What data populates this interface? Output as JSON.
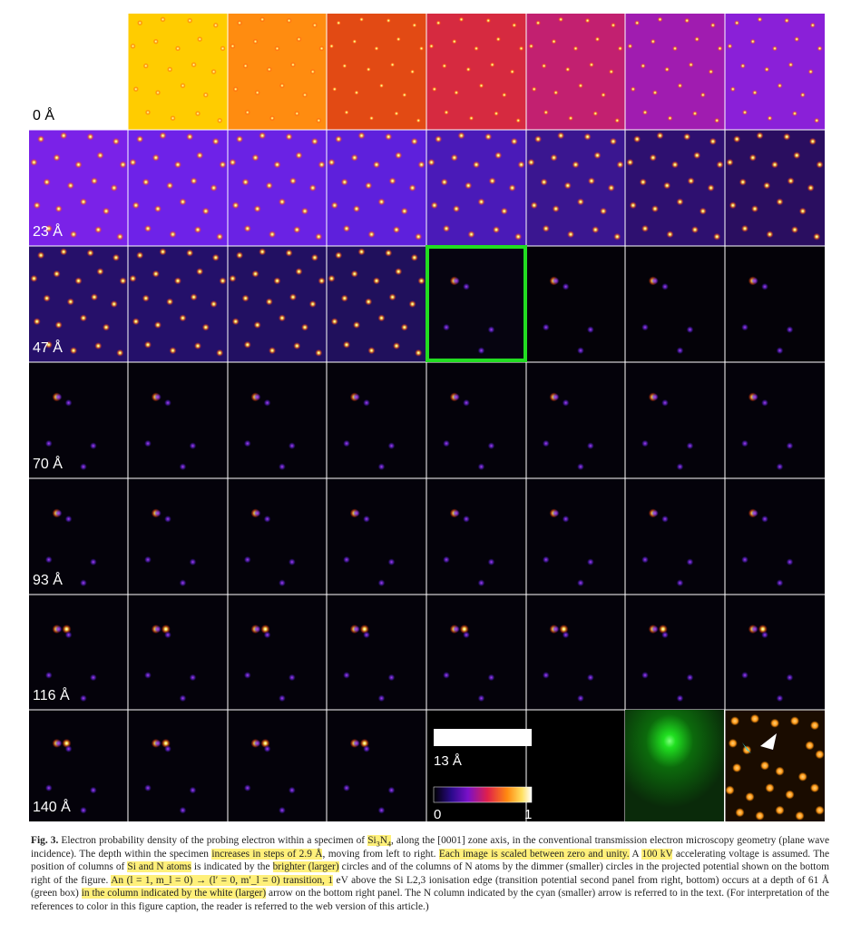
{
  "figure": {
    "rows": [
      {
        "depth_label": "0 Å"
      },
      {
        "depth_label": "23 Å"
      },
      {
        "depth_label": "47 Å"
      },
      {
        "depth_label": "70 Å"
      },
      {
        "depth_label": "93 Å"
      },
      {
        "depth_label": "116 Å"
      },
      {
        "depth_label": "140 Å"
      }
    ],
    "depth_step": "2.9 Å",
    "highlight_depth": "61 Å",
    "scale_bar_label": "13 Å",
    "colorbar_min": "0",
    "colorbar_max": "1",
    "colors": {
      "highlight_box": "#22dd22",
      "arrow_large": "#ffffff",
      "arrow_small": "#33cccc",
      "atom_orange": "#ff9a1a"
    }
  },
  "caption": {
    "label": "Fig. 3.",
    "p1": "Electron probability density of the probing electron within a specimen of",
    "formula": "Si3N4",
    "p2": ", along the [0001] zone axis, in the conventional transmission electron microscopy geometry (plane wave incidence). The depth within the specimen",
    "h1": "increases in steps of 2.9 Å",
    "p3": ", moving from left to right.",
    "h2": "Each image is scaled between zero and unity.",
    "p4": " A",
    "h3": "100 kV",
    "p5": "accelerating voltage is assumed. The position of columns of",
    "h4": "Si and N atoms",
    "p6": "is indicated by the",
    "h5": "brighter (larger)",
    "p7": "circles and of the columns of N atoms by the dimmer (smaller) circles in the projected potential shown on the bottom right of the figure.",
    "h6": "An (l = 1, m_l = 0) → (l′ = 0, m′_l = 0) transition, 1",
    "p8": "eV above the Si L2,3 ionisation edge (transition potential second panel from right, bottom) occurs at a depth of 61 Å (green box)",
    "h7": "in the column indicated by the white (larger)",
    "p9": "arrow on the bottom right panel. The N column indicated by the cyan (smaller) arrow is referred to in the text. (For interpretation of the references to color in this figure caption, the reader is referred to the web version of this article.)"
  }
}
